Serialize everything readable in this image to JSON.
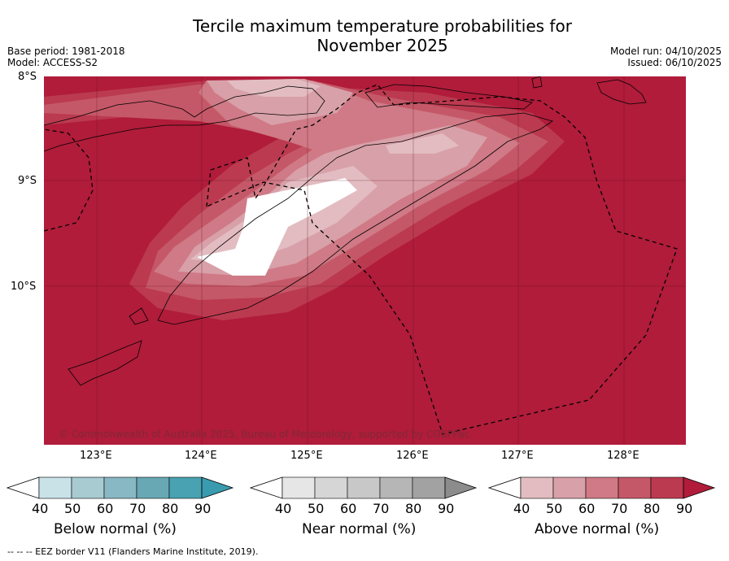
{
  "title_line1": "Tercile maximum temperature probabilities for",
  "title_line2": "November 2025",
  "meta_left": {
    "base_period": "Base period: 1981-2018",
    "model": "Model: ACCESS-S2"
  },
  "meta_right": {
    "model_run": "Model run: 04/10/2025",
    "issued": "Issued: 06/10/2025"
  },
  "map": {
    "lat_labels": [
      "8°S",
      "9°S",
      "10°S"
    ],
    "lon_labels": [
      "123°E",
      "124°E",
      "125°E",
      "126°E",
      "127°E",
      "128°E"
    ],
    "lat_range": [
      -11.5,
      -8.0
    ],
    "lon_range": [
      122.5,
      128.6
    ],
    "copyright": "© Commonwealth of Australia 2025, Bureau of Meteorology, supported by COSPPac",
    "colors": {
      "above_90": "#b01c3a",
      "above_80": "#bb3a50",
      "above_70": "#c55868",
      "above_60": "#cf7a86",
      "above_50": "#d8a0a8",
      "above_40": "#e2bcc1",
      "none": "#ffffff"
    }
  },
  "colorbars": [
    {
      "title": "Below normal (%)",
      "ticks": [
        "40",
        "50",
        "60",
        "70",
        "80",
        "90"
      ],
      "colors": [
        "#c8e2e8",
        "#a8cbd2",
        "#88b8c3",
        "#68a8b5",
        "#48a2b2",
        "#3a9bae"
      ]
    },
    {
      "title": "Near normal (%)",
      "ticks": [
        "40",
        "50",
        "60",
        "70",
        "80",
        "90"
      ],
      "colors": [
        "#e6e6e6",
        "#d6d6d6",
        "#c8c8c8",
        "#b6b6b6",
        "#a2a2a2",
        "#8c8c8c"
      ]
    },
    {
      "title": "Above normal (%)",
      "ticks": [
        "40",
        "50",
        "60",
        "70",
        "80",
        "90"
      ],
      "colors": [
        "#e2bcc1",
        "#d8a0a8",
        "#cf7a86",
        "#c55868",
        "#bb3a50",
        "#b01c3a"
      ]
    }
  ],
  "footnote": "-- -- -- EEZ border V11 (Flanders Marine Institute, 2019)."
}
